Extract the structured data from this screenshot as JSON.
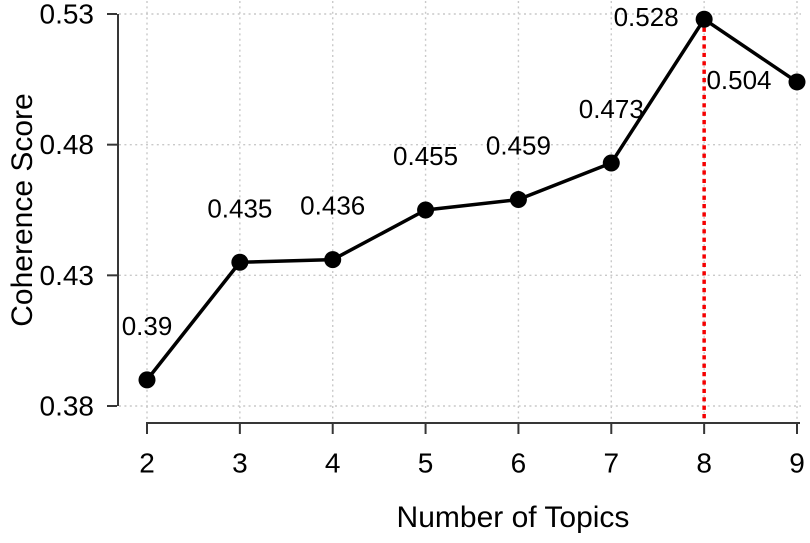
{
  "chart_data": {
    "type": "line",
    "title": "",
    "xlabel": "Number of Topics",
    "ylabel": "Coherence Score",
    "x": [
      2,
      3,
      4,
      5,
      6,
      7,
      8,
      9
    ],
    "y": [
      0.39,
      0.435,
      0.436,
      0.455,
      0.459,
      0.473,
      0.528,
      0.504
    ],
    "point_labels": [
      "0.39",
      "0.435",
      "0.436",
      "0.455",
      "0.459",
      "0.473",
      "0.528",
      "0.504"
    ],
    "label_placement": [
      "above",
      "above",
      "above",
      "above",
      "above",
      "above",
      "left",
      "left"
    ],
    "x_ticks": [
      "2",
      "3",
      "4",
      "5",
      "6",
      "7",
      "8",
      "9"
    ],
    "y_ticks": [
      "0.38",
      "0.43",
      "0.48",
      "0.53"
    ],
    "xlim": [
      2,
      9
    ],
    "ylim": [
      0.38,
      0.53
    ],
    "grid": true,
    "grid_style": "dotted",
    "legend": "none",
    "vline": {
      "x": 8,
      "style": "dotted",
      "label": ""
    },
    "colors": {
      "series": "#000000",
      "marker": "#000000",
      "grid": "#c9c9c9",
      "axis": "#363636",
      "text": "#000000",
      "vline": "#f50000",
      "background": "#ffffff"
    }
  }
}
